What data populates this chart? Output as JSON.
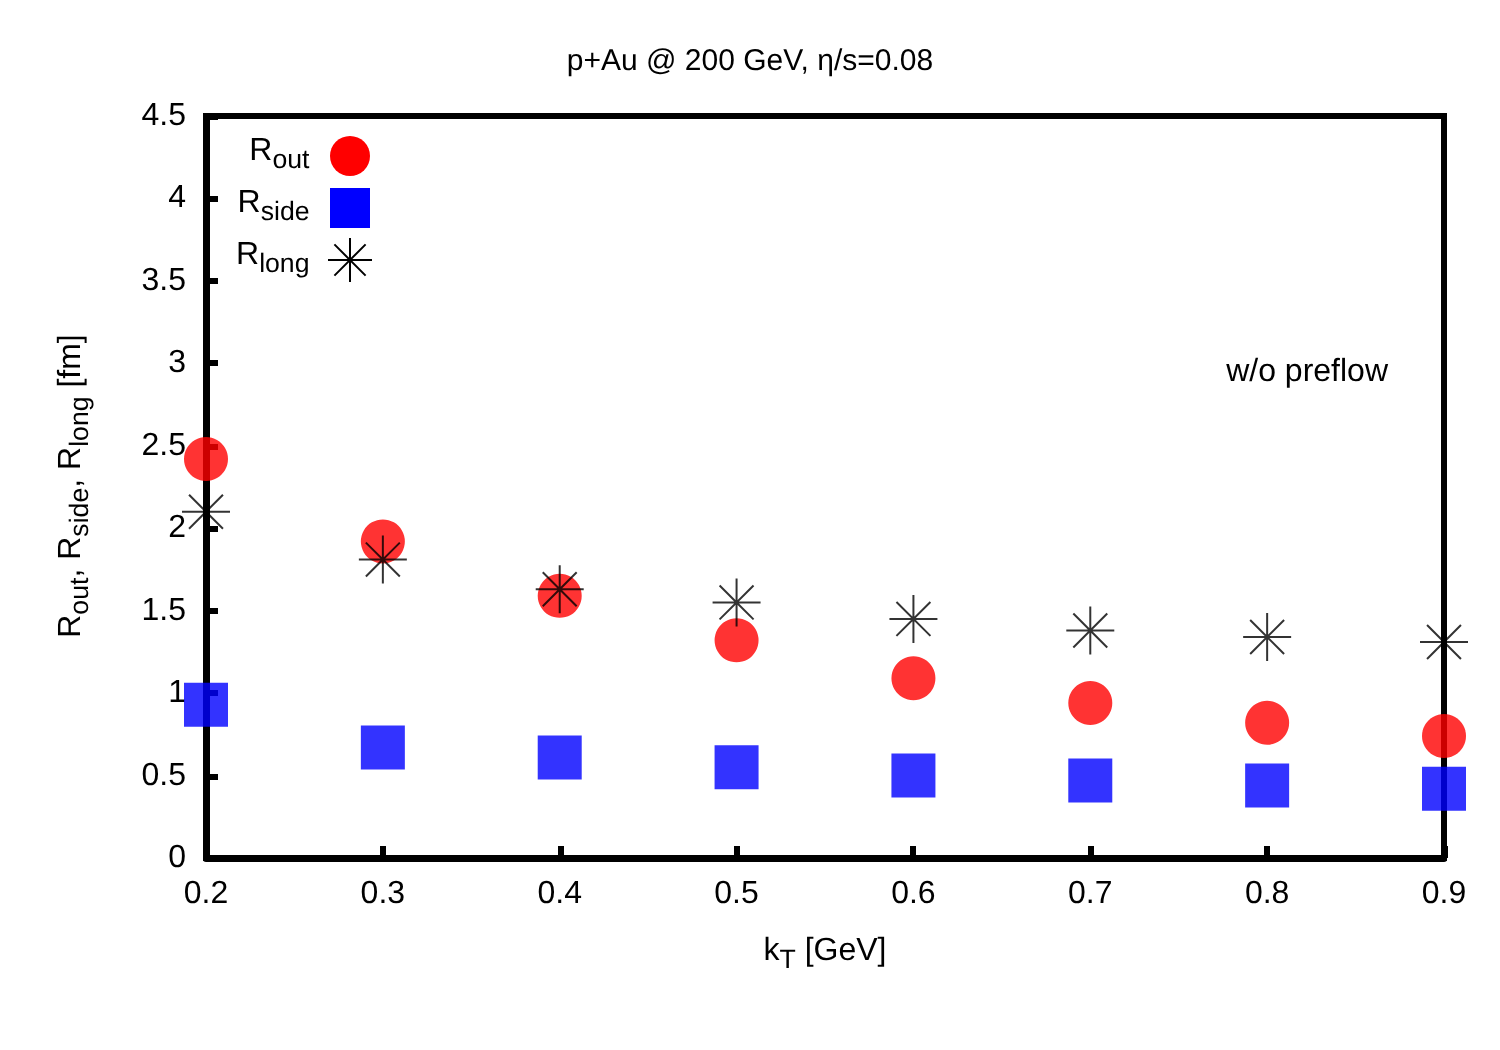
{
  "chart_data": {
    "type": "scatter",
    "title": "p+Au @ 200 GeV, η/s=0.08",
    "xlabel": "k$_{T}$ [GeV]",
    "ylabel": "R$_{out}$, R$_{side}$, R$_{long}$ [fm]",
    "x": [
      0.2,
      0.3,
      0.4,
      0.5,
      0.6,
      0.7,
      0.8,
      0.9
    ],
    "series": [
      {
        "name": "R$_{out}$",
        "color": "#ff0000",
        "marker": "circle",
        "values": [
          2.42,
          1.92,
          1.59,
          1.32,
          1.09,
          0.94,
          0.82,
          0.74
        ]
      },
      {
        "name": "R$_{side}$",
        "color": "#0000ff",
        "marker": "square",
        "values": [
          0.93,
          0.67,
          0.61,
          0.55,
          0.5,
          0.47,
          0.44,
          0.42
        ]
      },
      {
        "name": "R$_{long}$",
        "color": "#000000",
        "marker": "cross",
        "values": [
          2.1,
          1.81,
          1.63,
          1.55,
          1.45,
          1.38,
          1.34,
          1.31
        ]
      }
    ],
    "xlim": [
      0.2,
      0.9
    ],
    "xticks": [
      0.2,
      0.3,
      0.4,
      0.5,
      0.6,
      0.7,
      0.8,
      0.9
    ],
    "ylim": [
      0,
      4.5
    ],
    "yticks": [
      0,
      0.5,
      1,
      1.5,
      2,
      2.5,
      3,
      3.5,
      4,
      4.5
    ],
    "annotations": [
      "w/o preflow"
    ],
    "legend": "top left",
    "grid": false
  }
}
